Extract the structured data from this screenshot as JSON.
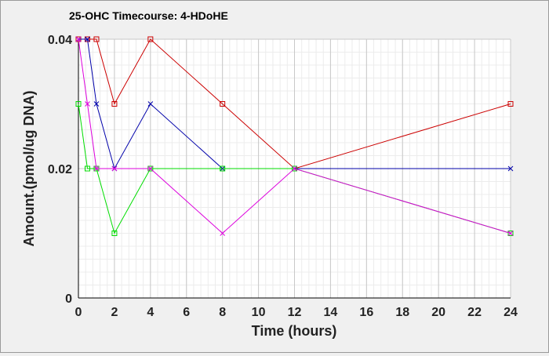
{
  "chart_data": {
    "type": "line",
    "title": "25-OHC Timecourse: 4-HDoHE",
    "xlabel": "Time (hours)",
    "ylabel": "Amount.(pmol/ug DNA)",
    "xlim": [
      0,
      24
    ],
    "ylim": [
      0,
      0.04
    ],
    "x_ticks": [
      0,
      2,
      4,
      6,
      8,
      10,
      12,
      14,
      16,
      18,
      20,
      22,
      24
    ],
    "y_ticks": [
      0,
      0.02,
      0.04
    ],
    "y_tick_labels": [
      "0",
      "0.02",
      "0.04"
    ],
    "grid": true,
    "legend": "none",
    "series": [
      {
        "color": "#cc0000",
        "marker": "square",
        "x": [
          0,
          0.5,
          1,
          2,
          4,
          8,
          12,
          24
        ],
        "y": [
          0.04,
          0.04,
          0.04,
          0.03,
          0.04,
          0.03,
          0.02,
          0.03
        ]
      },
      {
        "color": "#0000aa",
        "marker": "x",
        "x": [
          0,
          0.5,
          1,
          2,
          4,
          8,
          12,
          24
        ],
        "y": [
          0.04,
          0.04,
          0.03,
          0.02,
          0.03,
          0.02,
          0.02,
          0.02
        ]
      },
      {
        "color": "#00dd00",
        "marker": "square",
        "x": [
          0,
          0.5,
          1,
          2,
          4,
          8,
          12,
          24
        ],
        "y": [
          0.03,
          0.02,
          0.02,
          0.01,
          0.02,
          0.02,
          0.02,
          0.01
        ]
      },
      {
        "color": "#dd00dd",
        "marker": "x",
        "x": [
          0,
          0.5,
          1,
          2,
          4,
          8,
          12,
          24
        ],
        "y": [
          0.04,
          0.03,
          0.02,
          0.02,
          0.02,
          0.01,
          0.02,
          0.01
        ]
      }
    ]
  }
}
